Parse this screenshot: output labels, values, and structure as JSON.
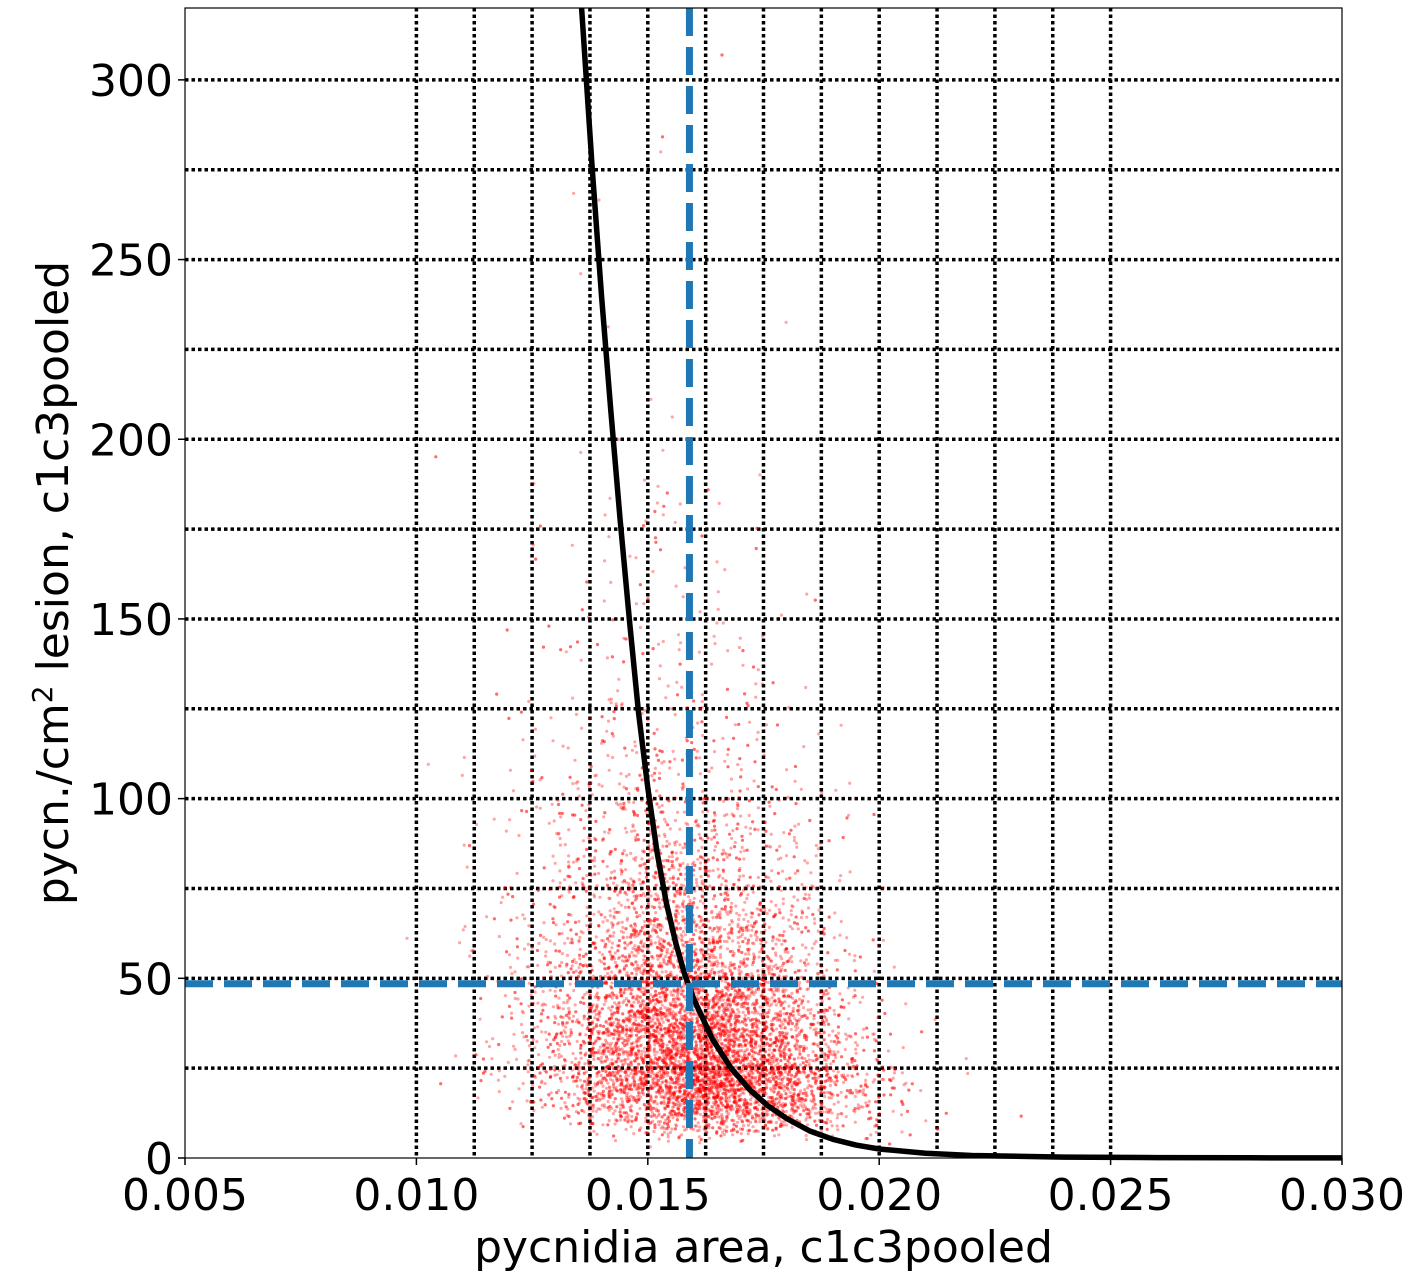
{
  "chart_data": {
    "type": "scatter",
    "xlabel": "pycnidia area, c1c3pooled",
    "ylabel_main": "pycn./cm",
    "ylabel_sup": "2",
    "ylabel_rest": " lesion, c1c3pooled",
    "xlim": [
      0.005,
      0.03
    ],
    "ylim": [
      0,
      320
    ],
    "x_ticks": [
      0.005,
      0.01,
      0.015,
      0.02,
      0.025,
      0.03
    ],
    "x_tick_labels": [
      "0.005",
      "0.010",
      "0.015",
      "0.020",
      "0.025",
      "0.030"
    ],
    "y_ticks": [
      0,
      50,
      100,
      150,
      200,
      250,
      300
    ],
    "y_tick_labels": [
      "0",
      "50",
      "100",
      "150",
      "200",
      "250",
      "300"
    ],
    "grid": true,
    "grid_x": [
      0.01,
      0.01125,
      0.0125,
      0.01375,
      0.015,
      0.01625,
      0.0175,
      0.01875,
      0.02,
      0.02125,
      0.0225,
      0.02375,
      0.025
    ],
    "grid_y": [
      25,
      50,
      75,
      100,
      125,
      150,
      175,
      200,
      225,
      250,
      275,
      300
    ],
    "reference_lines": {
      "x": 0.0159,
      "y": 48.5,
      "color": "#1f77b4",
      "style": "dashed"
    },
    "fit_curve": {
      "color": "#000000",
      "points": [
        [
          0.01357,
          320
        ],
        [
          0.0138,
          275
        ],
        [
          0.014,
          240
        ],
        [
          0.0142,
          208
        ],
        [
          0.0144,
          178
        ],
        [
          0.0146,
          150
        ],
        [
          0.0148,
          124
        ],
        [
          0.015,
          103
        ],
        [
          0.0152,
          85
        ],
        [
          0.0154,
          71
        ],
        [
          0.0156,
          60
        ],
        [
          0.0158,
          51
        ],
        [
          0.016,
          44
        ],
        [
          0.0164,
          33
        ],
        [
          0.0168,
          25
        ],
        [
          0.0172,
          19
        ],
        [
          0.0176,
          14.5
        ],
        [
          0.018,
          11
        ],
        [
          0.0185,
          7.5
        ],
        [
          0.019,
          5.2
        ],
        [
          0.0195,
          3.6
        ],
        [
          0.02,
          2.5
        ],
        [
          0.021,
          1.3
        ],
        [
          0.022,
          0.7
        ],
        [
          0.024,
          0.25
        ],
        [
          0.026,
          0.1
        ],
        [
          0.028,
          0.05
        ],
        [
          0.03,
          0.02
        ]
      ]
    },
    "scatter": {
      "color": "#ff0000",
      "opacity": 0.35,
      "approx_points": 9000,
      "center_x": 0.016,
      "center_y": 45,
      "note_density": "dense cloud between x≈0.013–0.019 and y≈0–120"
    }
  }
}
